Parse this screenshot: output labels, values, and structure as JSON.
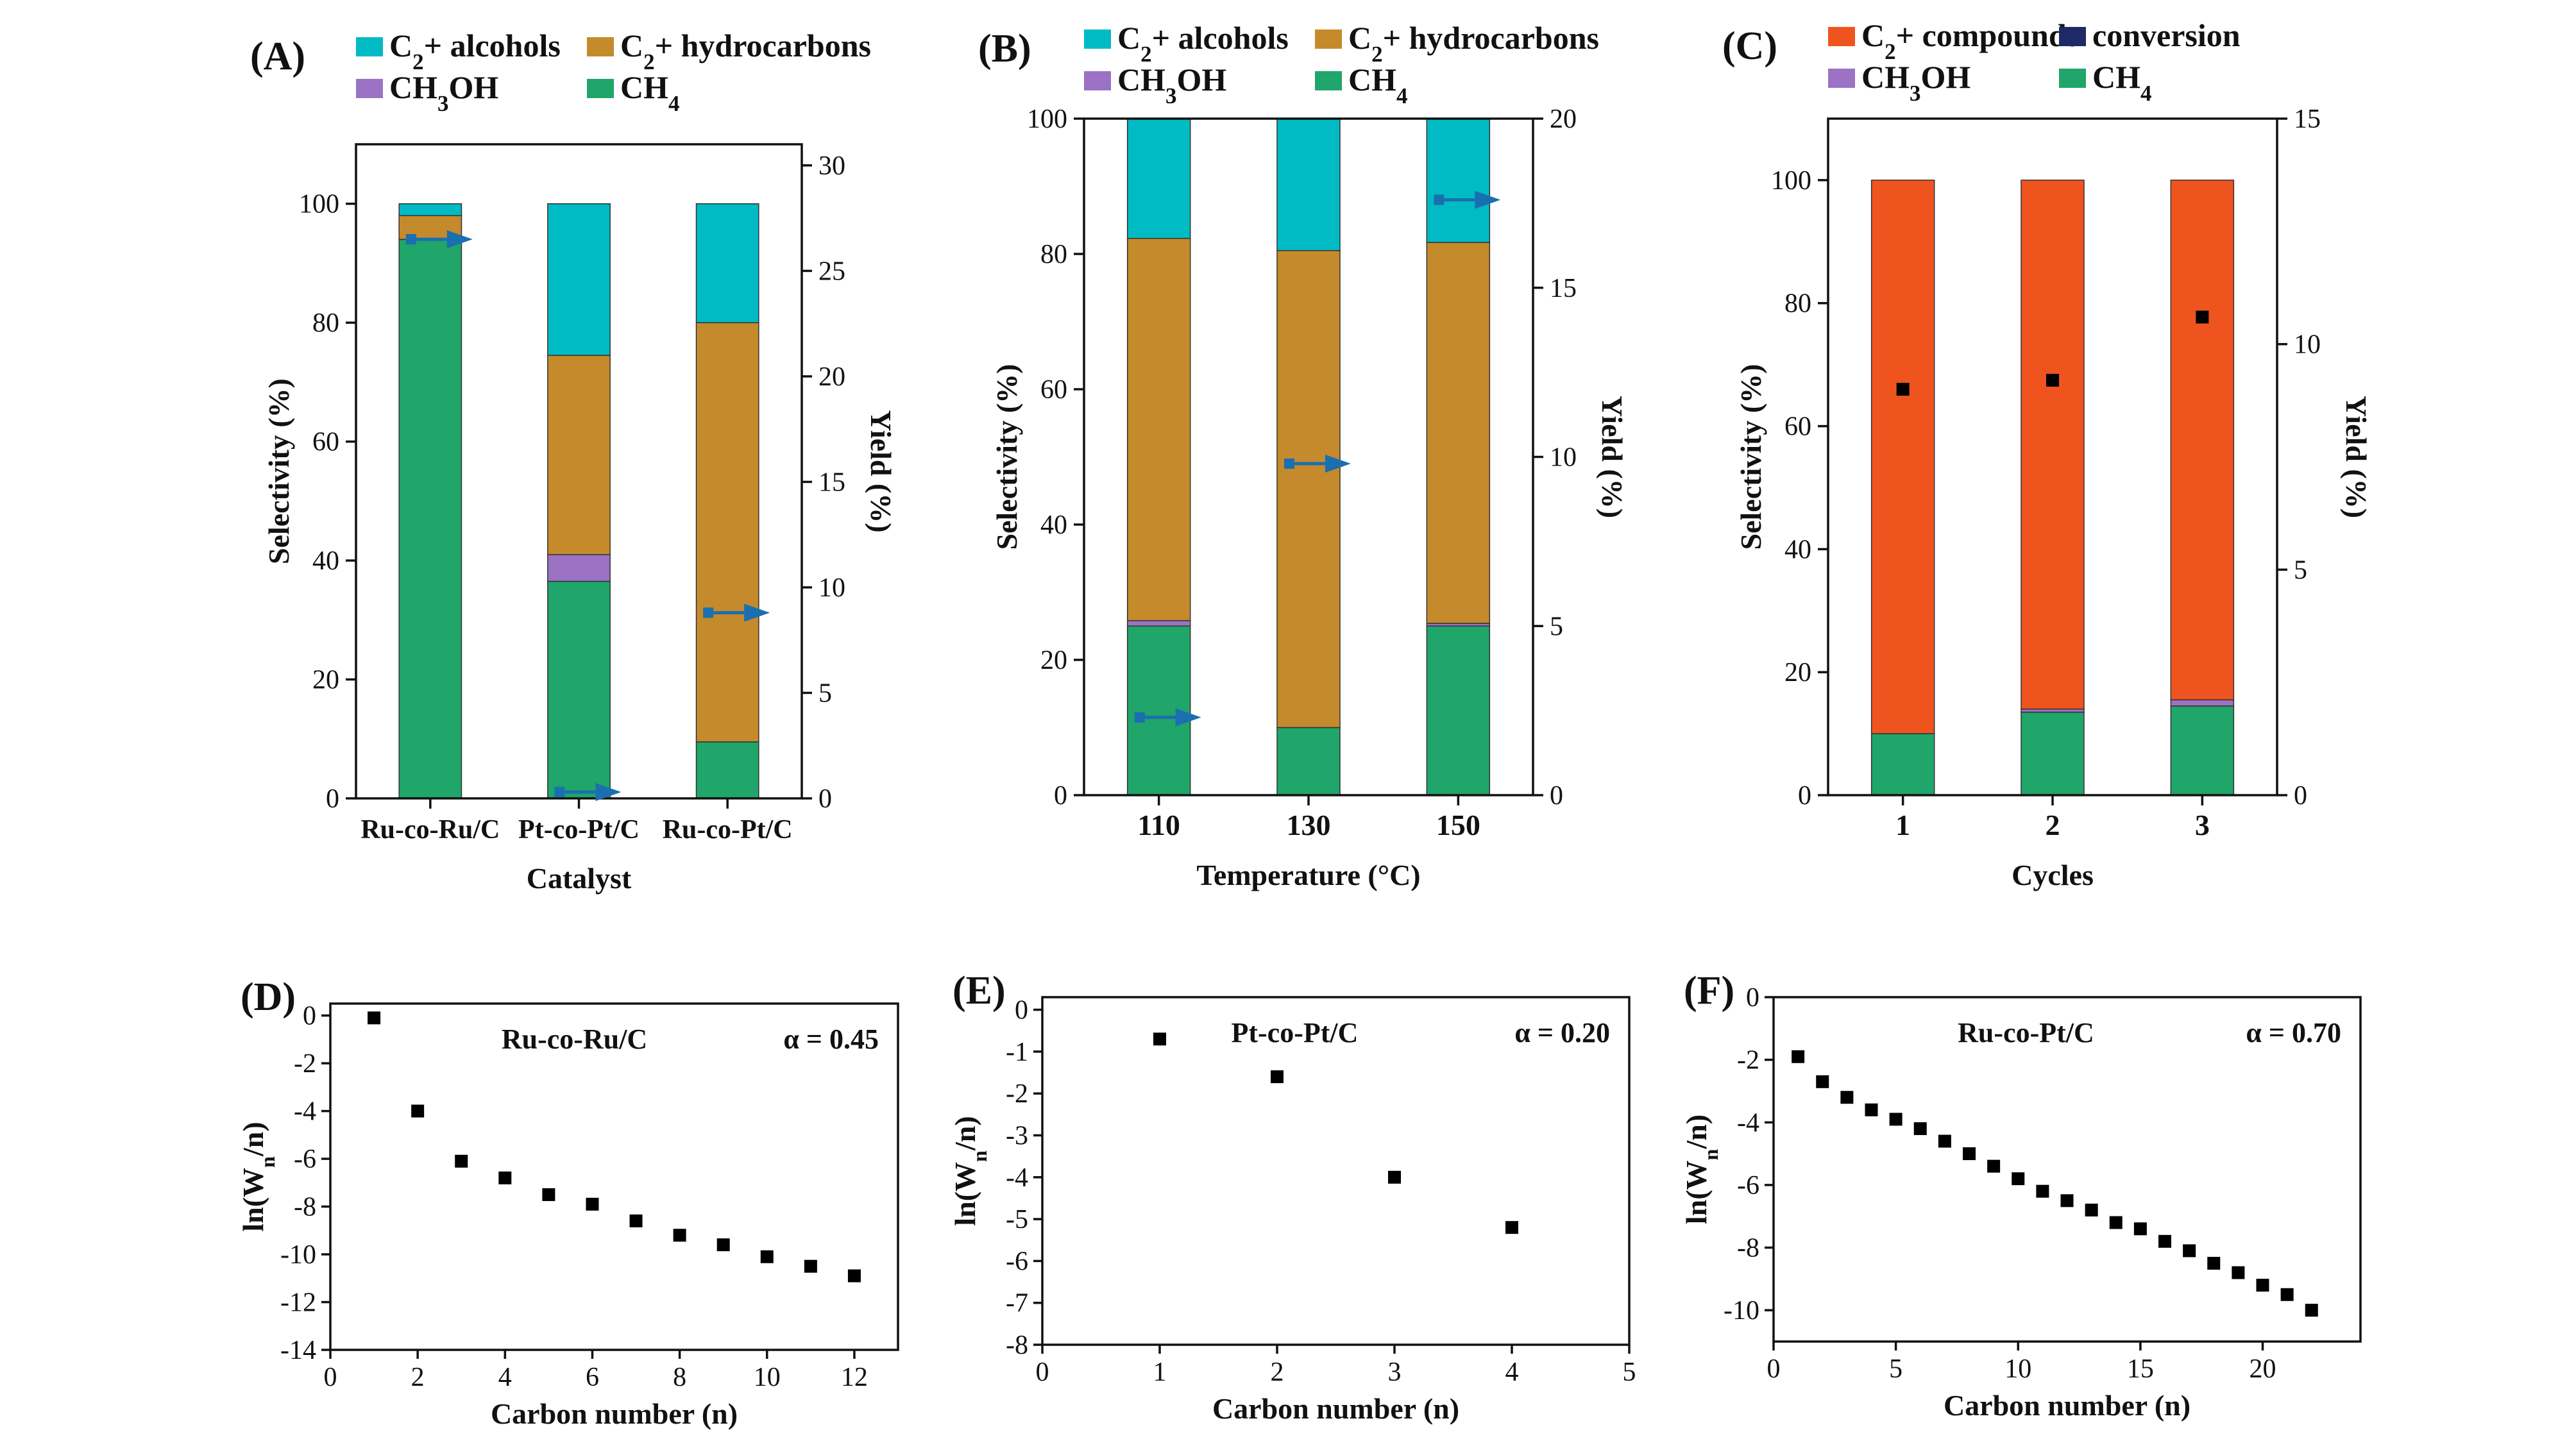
{
  "colors": {
    "c2_alcohols": "#00BBC4",
    "c2_hydrocarbons": "#C48A2C",
    "ch3oh": "#9B72C4",
    "ch4": "#20A56A",
    "c2_compounds": "#F0541E",
    "conversion": "#1E2A66",
    "yield_arrow": "#1A6FB0",
    "scatter": "#000000"
  },
  "chart_data": [
    {
      "id": "A",
      "type": "bar",
      "panel_label": "(A)",
      "xlabel": "Catalyst",
      "ylabel": "Selectivity (%)",
      "y2label": "Yield (%)",
      "ylim": [
        0,
        110
      ],
      "yticks": [
        0,
        20,
        40,
        60,
        80,
        100
      ],
      "y2lim": [
        0,
        31
      ],
      "y2ticks": [
        0,
        5,
        10,
        15,
        20,
        25,
        30
      ],
      "categories": [
        "Ru-co-Ru/C",
        "Pt-co-Pt/C",
        "Ru-co-Pt/C"
      ],
      "legend": {
        "placement": "top",
        "entries": [
          {
            "key": "c2_alcohols",
            "pre": "C",
            "sub": "2",
            "post": "+ alcohols"
          },
          {
            "key": "c2_hydrocarbons",
            "pre": "C",
            "sub": "2",
            "post": "+ hydrocarbons"
          },
          {
            "key": "ch3oh",
            "pre": "CH",
            "sub": "3",
            "post": "OH"
          },
          {
            "key": "ch4",
            "pre": "CH",
            "sub": "4",
            "post": ""
          }
        ]
      },
      "series": [
        {
          "key": "ch4",
          "values": [
            94,
            36.5,
            9.5
          ]
        },
        {
          "key": "ch3oh",
          "values": [
            0,
            4.5,
            0
          ]
        },
        {
          "key": "c2_hydrocarbons",
          "values": [
            4,
            33.5,
            70.5
          ]
        },
        {
          "key": "c2_alcohols",
          "values": [
            2,
            25.5,
            20
          ]
        }
      ],
      "yield": {
        "marker": "arrow",
        "values": [
          26.5,
          0.3,
          8.8
        ]
      }
    },
    {
      "id": "B",
      "type": "bar",
      "panel_label": "(B)",
      "xlabel": "Temperature (°C)",
      "ylabel": "Selectivity (%)",
      "y2label": "Yield (%)",
      "ylim": [
        0,
        100
      ],
      "yticks": [
        0,
        20,
        40,
        60,
        80,
        100
      ],
      "y2lim": [
        0,
        20
      ],
      "y2ticks": [
        0,
        5,
        10,
        15,
        20
      ],
      "categories": [
        "110",
        "130",
        "150"
      ],
      "legend": {
        "placement": "top",
        "entries": [
          {
            "key": "c2_alcohols",
            "pre": "C",
            "sub": "2",
            "post": "+ alcohols"
          },
          {
            "key": "c2_hydrocarbons",
            "pre": "C",
            "sub": "2",
            "post": "+ hydrocarbons"
          },
          {
            "key": "ch3oh",
            "pre": "CH",
            "sub": "3",
            "post": "OH"
          },
          {
            "key": "ch4",
            "pre": "CH",
            "sub": "4",
            "post": ""
          }
        ]
      },
      "series": [
        {
          "key": "ch4",
          "values": [
            25,
            10,
            25
          ]
        },
        {
          "key": "ch3oh",
          "values": [
            0.8,
            0,
            0.4
          ]
        },
        {
          "key": "c2_hydrocarbons",
          "values": [
            56.5,
            70.5,
            56.3
          ]
        },
        {
          "key": "c2_alcohols",
          "values": [
            17.7,
            19.5,
            18.3
          ]
        }
      ],
      "yield": {
        "marker": "arrow",
        "values": [
          2.3,
          9.8,
          17.6
        ]
      }
    },
    {
      "id": "C",
      "type": "bar",
      "panel_label": "(C)",
      "xlabel": "Cycles",
      "ylabel": "Selectivity (%)",
      "y2label": "Yield (%)",
      "ylim": [
        0,
        110
      ],
      "yticks": [
        0,
        20,
        40,
        60,
        80,
        100
      ],
      "y2lim": [
        0,
        15
      ],
      "y2ticks": [
        0,
        5,
        10,
        15
      ],
      "categories": [
        "1",
        "2",
        "3"
      ],
      "legend": {
        "placement": "top",
        "entries": [
          {
            "key": "c2_compounds",
            "pre": "C",
            "sub": "2",
            "post": "+ compounds"
          },
          {
            "key": "conversion",
            "pre": "conversion",
            "sub": "",
            "post": ""
          },
          {
            "key": "ch3oh",
            "pre": "CH",
            "sub": "3",
            "post": "OH"
          },
          {
            "key": "ch4",
            "pre": "CH",
            "sub": "4",
            "post": ""
          }
        ]
      },
      "series": [
        {
          "key": "ch4",
          "values": [
            10,
            13.5,
            14.5
          ]
        },
        {
          "key": "ch3oh",
          "values": [
            0,
            0.5,
            1
          ]
        },
        {
          "key": "c2_compounds",
          "values": [
            90,
            86,
            84.5
          ]
        }
      ],
      "yield": {
        "marker": "square",
        "values": [
          9.0,
          9.2,
          10.6
        ]
      }
    },
    {
      "id": "D",
      "type": "scatter",
      "panel_label": "(D)",
      "xlabel": "Carbon number (n)",
      "ylabel_pre": "ln(W",
      "ylabel_sub": "n",
      "ylabel_post": "/n)",
      "xlim": [
        0,
        13
      ],
      "xticks": [
        0,
        2,
        4,
        6,
        8,
        10,
        12
      ],
      "ylim": [
        -14,
        0.5
      ],
      "yticks": [
        -14,
        -12,
        -10,
        -8,
        -6,
        -4,
        -2,
        0
      ],
      "catalyst_label": "Ru-co-Ru/C",
      "alpha_label": "α = 0.45",
      "x": [
        1,
        2,
        3,
        4,
        5,
        6,
        7,
        8,
        9,
        10,
        11,
        12
      ],
      "y": [
        -0.1,
        -4.0,
        -6.1,
        -6.8,
        -7.5,
        -7.9,
        -8.6,
        -9.2,
        -9.6,
        -10.1,
        -10.5,
        -10.9
      ]
    },
    {
      "id": "E",
      "type": "scatter",
      "panel_label": "(E)",
      "xlabel": "Carbon number (n)",
      "ylabel_pre": "ln(W",
      "ylabel_sub": "n",
      "ylabel_post": "/n)",
      "xlim": [
        0,
        5
      ],
      "xticks": [
        0,
        1,
        2,
        3,
        4,
        5
      ],
      "ylim": [
        -8,
        0.3
      ],
      "yticks": [
        -8,
        -7,
        -6,
        -5,
        -4,
        -3,
        -2,
        -1,
        0
      ],
      "catalyst_label": "Pt-co-Pt/C",
      "alpha_label": "α = 0.20",
      "x": [
        1,
        2,
        3,
        4
      ],
      "y": [
        -0.7,
        -1.6,
        -4.0,
        -5.2
      ]
    },
    {
      "id": "F",
      "type": "scatter",
      "panel_label": "(F)",
      "xlabel": "Carbon number (n)",
      "ylabel_pre": "ln(W",
      "ylabel_sub": "n",
      "ylabel_post": "/n)",
      "xlim": [
        0,
        24
      ],
      "xticks": [
        0,
        5,
        10,
        15,
        20
      ],
      "ylim": [
        -11,
        0
      ],
      "yticks": [
        -10,
        -8,
        -6,
        -4,
        -2,
        0
      ],
      "catalyst_label": "Ru-co-Pt/C",
      "alpha_label": "α = 0.70",
      "x": [
        1,
        2,
        3,
        4,
        5,
        6,
        7,
        8,
        9,
        10,
        11,
        12,
        13,
        14,
        15,
        16,
        17,
        18,
        19,
        20,
        21,
        22
      ],
      "y": [
        -1.9,
        -2.7,
        -3.2,
        -3.6,
        -3.9,
        -4.2,
        -4.6,
        -5.0,
        -5.4,
        -5.8,
        -6.2,
        -6.5,
        -6.8,
        -7.2,
        -7.4,
        -7.8,
        -8.1,
        -8.5,
        -8.8,
        -9.2,
        -9.5,
        -10.0
      ]
    }
  ]
}
